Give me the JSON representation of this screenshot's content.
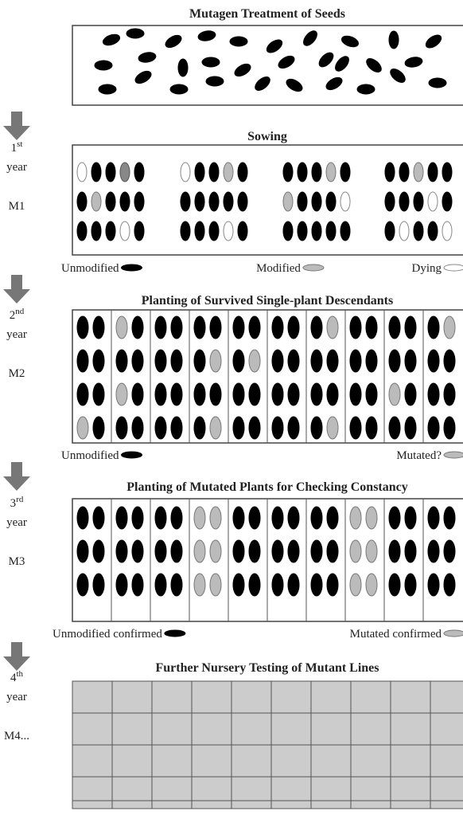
{
  "panels": [
    {
      "title": "Mutagen Treatment of Seeds"
    },
    {
      "title": "Sowing",
      "year": {
        "num": "1",
        "sup": "st",
        "word": "year",
        "generation": "M1"
      },
      "legend": [
        "Unmodified",
        "Modified",
        "Dying"
      ]
    },
    {
      "title": "Planting of Survived Single-plant Descendants",
      "year": {
        "num": "2",
        "sup": "nd",
        "word": "year",
        "generation": "M2"
      },
      "legend": [
        "Unmodified",
        "Mutated?"
      ]
    },
    {
      "title": "Planting of Mutated Plants for Checking Constancy",
      "year": {
        "num": "3",
        "sup": "rd",
        "word": "year",
        "generation": "M3"
      },
      "legend": [
        "Unmodified confirmed",
        "Mutated confirmed"
      ]
    },
    {
      "title": "Further Nursery Testing of Mutant Lines",
      "year": {
        "num": "4",
        "sup": "th",
        "word": "year",
        "generation": "M4..."
      }
    }
  ]
}
